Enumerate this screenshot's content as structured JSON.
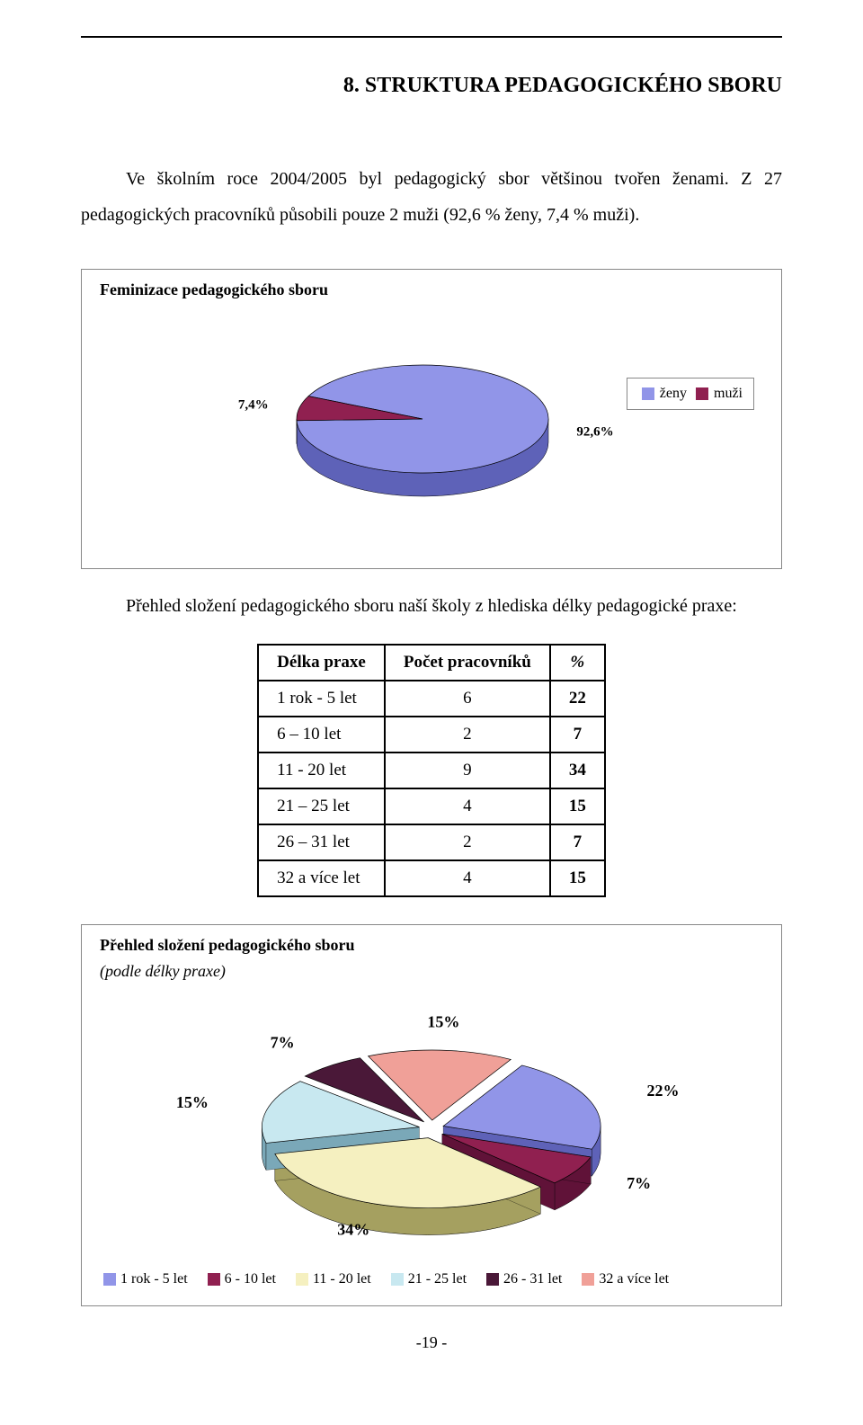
{
  "section_title": "8. STRUKTURA PEDAGOGICKÉHO SBORU",
  "intro_text": "Ve školním roce 2004/2005 byl pedagogický sbor většinou tvořen ženami. Z 27 pedagogických pracovníků působili pouze 2 muži (92,6 % ženy, 7,4 % muži).",
  "pie1": {
    "title": "Feminizace pedagogického sboru",
    "type": "pie",
    "slices": [
      {
        "label": "ženy",
        "value": 92.6,
        "color": "#9195E8",
        "side_color": "#5E62B8",
        "text": "92,6%"
      },
      {
        "label": "muži",
        "value": 7.4,
        "color": "#902050",
        "side_color": "#601238",
        "text": "7,4%"
      }
    ],
    "legend": [
      "ženy",
      "muži"
    ],
    "title_fontsize": 18,
    "label_fontsize": 15,
    "background_color": "#ffffff",
    "border_color": "#888888"
  },
  "after_pie1_text": "Přehled složení pedagogického sboru naší školy z hlediska délky pedagogické praxe:",
  "table": {
    "columns": [
      "Délka praxe",
      "Počet pracovníků",
      "%"
    ],
    "rows": [
      [
        "1 rok - 5 let",
        "6",
        "22"
      ],
      [
        "6 – 10 let",
        "2",
        "7"
      ],
      [
        "11 - 20 let",
        "9",
        "34"
      ],
      [
        "21 – 25 let",
        "4",
        "15"
      ],
      [
        "26 – 31 let",
        "2",
        "7"
      ],
      [
        "32 a více let",
        "4",
        "15"
      ]
    ]
  },
  "pie2": {
    "title": "Přehled složení pedagogického sboru",
    "subtitle": "(podle délky praxe)",
    "type": "pie-exploded",
    "slices": [
      {
        "label": "1 rok - 5 let",
        "value": 22,
        "color": "#9195E8",
        "side_color": "#5E62B8",
        "text": "22%"
      },
      {
        "label": "6 - 10 let",
        "value": 7,
        "color": "#902050",
        "side_color": "#601238",
        "text": "7%"
      },
      {
        "label": "11 - 20 let",
        "value": 34,
        "color": "#F5F0C0",
        "side_color": "#A5A060",
        "text": "34%"
      },
      {
        "label": "21 - 25 let",
        "value": 15,
        "color": "#C8E8F0",
        "side_color": "#7AA8B8",
        "text": "15%"
      },
      {
        "label": "26 - 31 let",
        "value": 7,
        "color": "#4A1838",
        "side_color": "#300C24",
        "text": "7%"
      },
      {
        "label": "32 a více let",
        "value": 15,
        "color": "#F0A098",
        "side_color": "#C07068",
        "text": "15%"
      }
    ],
    "title_fontsize": 18,
    "label_fontsize": 18,
    "background_color": "#ffffff",
    "border_color": "#888888"
  },
  "page_number": "-19 -"
}
